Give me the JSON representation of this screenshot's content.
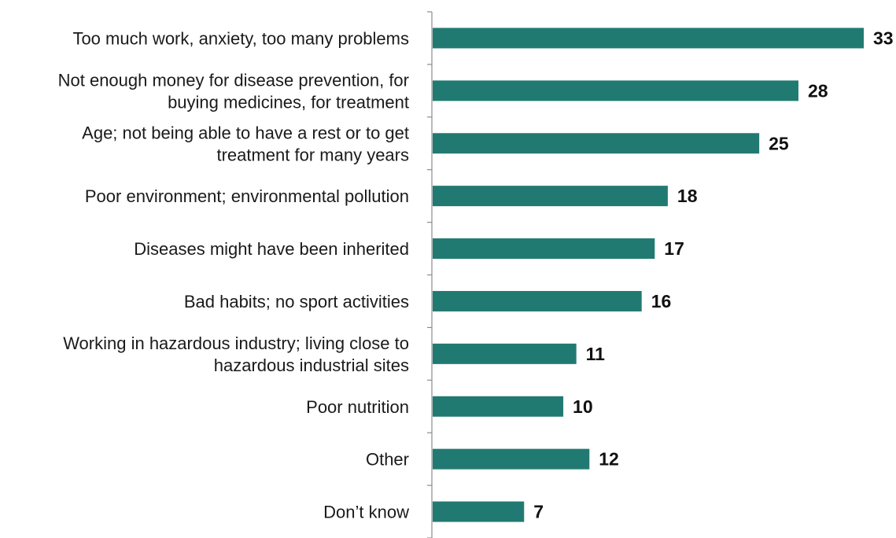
{
  "chart_data": {
    "type": "bar",
    "orientation": "horizontal",
    "title": "",
    "xlabel": "",
    "ylabel": "",
    "xlim": [
      0,
      33
    ],
    "grid": false,
    "bar_color": "#217a72",
    "categories": [
      [
        "Too much work, anxiety,  too many problems"
      ],
      [
        "Not enough money for disease prevention, for",
        "buying medicines, for treatment"
      ],
      [
        "Age; not being able to have a rest or to get",
        "treatment for many years"
      ],
      [
        "Poor environment; environmental pollution"
      ],
      [
        "Diseases might have been inherited"
      ],
      [
        "Bad habits; no sport activities"
      ],
      [
        "Working in hazardous industry; living close to",
        "hazardous industrial sites"
      ],
      [
        "Poor nutrition"
      ],
      [
        "Other"
      ],
      [
        "Don’t know"
      ]
    ],
    "values": [
      33,
      28,
      25,
      18,
      17,
      16,
      11,
      10,
      12,
      7
    ]
  }
}
